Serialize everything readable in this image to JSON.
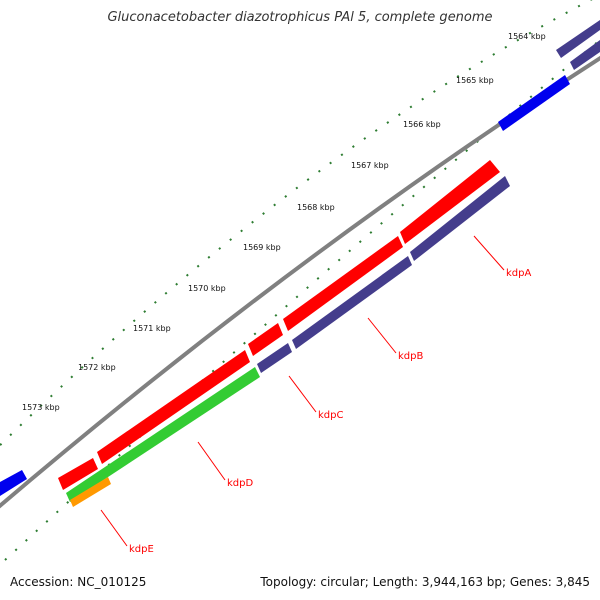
{
  "title": "Gluconacetobacter diazotrophicus PAl 5, complete genome",
  "footer": {
    "accession": "Accession: NC_010125",
    "summary": "Topology: circular; Length: 3,944,163 bp; Genes: 3,845"
  },
  "ticks": [
    {
      "label": "1564 kbp"
    },
    {
      "label": "1565 kbp"
    },
    {
      "label": "1566 kbp"
    },
    {
      "label": "1567 kbp"
    },
    {
      "label": "1568 kbp"
    },
    {
      "label": "1569 kbp"
    },
    {
      "label": "1570 kbp"
    },
    {
      "label": "1571 kbp"
    },
    {
      "label": "1572 kbp"
    },
    {
      "label": "1573 kbp"
    }
  ],
  "genes": [
    {
      "label": "kdpA",
      "color": "#ff0000"
    },
    {
      "label": "kdpB",
      "color": "#ff0000"
    },
    {
      "label": "kdpC",
      "color": "#ff0000"
    },
    {
      "label": "kdpD",
      "color": "#ff0000"
    },
    {
      "label": "kdpE",
      "color": "#ff0000"
    }
  ],
  "colors": {
    "forward_cds": "#ff0000",
    "reverse_blue": "#0000ee",
    "operon_purple": "#443d8c",
    "green_feature": "#33cc33",
    "orange_feature": "#ff9900",
    "backbone": "#808080",
    "tick_marks": "#2e7d32",
    "label_lines": "#ff0000"
  }
}
